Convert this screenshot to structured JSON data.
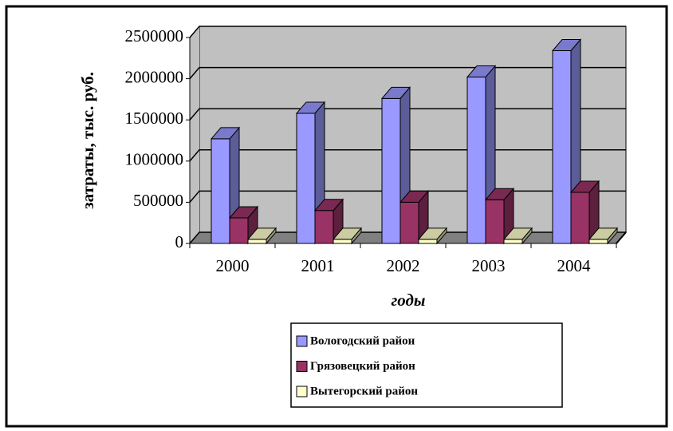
{
  "chart_data": {
    "type": "bar3d",
    "y_label": "затраты, тыс. руб.",
    "x_label": "годы",
    "categories": [
      "2000",
      "2001",
      "2002",
      "2003",
      "2004"
    ],
    "series": [
      {
        "name": "Вологодский район",
        "color": "#9999ff",
        "values": [
          1270000,
          1580000,
          1760000,
          2020000,
          2340000
        ]
      },
      {
        "name": "Грязовецкий район",
        "color": "#993366",
        "values": [
          310000,
          400000,
          500000,
          530000,
          620000
        ]
      },
      {
        "name": "Вытегорский район",
        "color": "#ffffcc",
        "values": [
          50000,
          50000,
          50000,
          50000,
          50000
        ]
      }
    ],
    "ylim": [
      0,
      2500000
    ],
    "yticks": [
      0,
      500000,
      1000000,
      1500000,
      2000000,
      2500000
    ],
    "grid": true
  }
}
